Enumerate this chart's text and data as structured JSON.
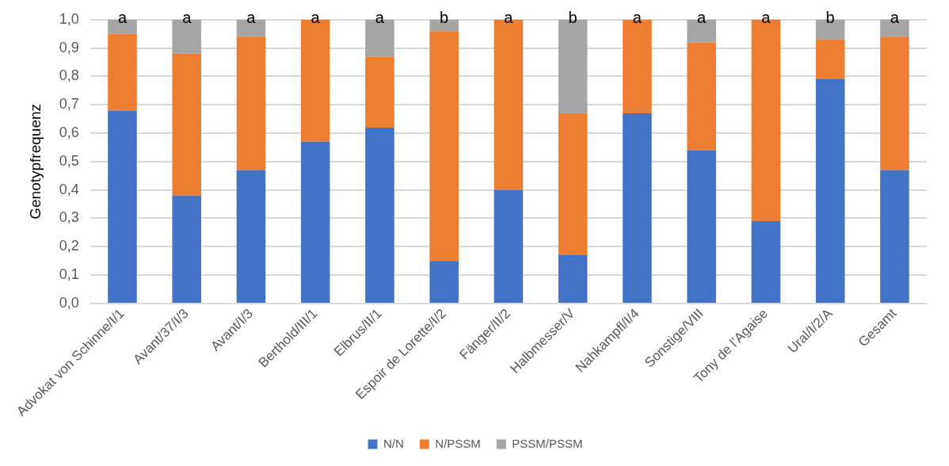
{
  "chart_data": {
    "type": "bar",
    "stacked": true,
    "ylabel": "Genotypfrequenz",
    "categories": [
      "Advokat von Schinne/I/1",
      "Avant/37/I/3",
      "Avant/I/3",
      "Berthold/III/1",
      "Elbrus/II/1",
      "Espoir de Lorette/I/2",
      "Fänger/II/2",
      "Halbmesser/V",
      "Nahkampfl/I/4",
      "Sonstige/VIII",
      "Tony de l’Agaise",
      "Ural/I/2/A",
      "Gesamt"
    ],
    "series": [
      {
        "name": "N/N",
        "color": "#4472c4",
        "values": [
          0.68,
          0.38,
          0.47,
          0.57,
          0.62,
          0.15,
          0.4,
          0.17,
          0.67,
          0.54,
          0.29,
          0.79,
          0.47
        ]
      },
      {
        "name": "N/PSSM",
        "color": "#ed7d31",
        "values": [
          0.27,
          0.5,
          0.47,
          0.43,
          0.25,
          0.81,
          0.6,
          0.5,
          0.33,
          0.38,
          0.71,
          0.14,
          0.47
        ]
      },
      {
        "name": "PSSM/PSSM",
        "color": "#a5a5a5",
        "values": [
          0.05,
          0.12,
          0.06,
          0,
          0.13,
          0.04,
          0,
          0.33,
          0,
          0.08,
          0,
          0.07,
          0.06
        ]
      }
    ],
    "ylim": [
      0,
      1
    ],
    "yticks": [
      {
        "value": 0,
        "label": "0,0"
      },
      {
        "value": 0.1,
        "label": "0,1"
      },
      {
        "value": 0.2,
        "label": "0,2"
      },
      {
        "value": 0.3,
        "label": "0,3"
      },
      {
        "value": 0.4,
        "label": "0,4"
      },
      {
        "value": 0.5,
        "label": "0,5"
      },
      {
        "value": 0.6,
        "label": "0,6"
      },
      {
        "value": 0.7,
        "label": "0,7"
      },
      {
        "value": 0.8,
        "label": "0,8"
      },
      {
        "value": 0.9,
        "label": "0,9"
      },
      {
        "value": 1,
        "label": "1,0"
      }
    ],
    "grid": "y",
    "legend": "bottom",
    "annotations": [
      {
        "text": "a",
        "x": "Advokat von Schinne/I/1",
        "y": 1
      },
      {
        "text": "a",
        "x": "Avant/37/I/3",
        "y": 1
      },
      {
        "text": "a",
        "x": "Avant/I/3",
        "y": 1
      },
      {
        "text": "a",
        "x": "Berthold/III/1",
        "y": 1
      },
      {
        "text": "a",
        "x": "Elbrus/II/1",
        "y": 1
      },
      {
        "text": "b",
        "x": "Espoir de Lorette/I/2",
        "y": 1
      },
      {
        "text": "a",
        "x": "Fänger/II/2",
        "y": 1
      },
      {
        "text": "b",
        "x": "Halbmesser/V",
        "y": 1
      },
      {
        "text": "a",
        "x": "Nahkampfl/I/4",
        "y": 1
      },
      {
        "text": "a",
        "x": "Sonstige/VIII",
        "y": 1
      },
      {
        "text": "a",
        "x": "Tony de l’Agaise",
        "y": 1
      },
      {
        "text": "b",
        "x": "Ural/I/2/A",
        "y": 1
      },
      {
        "text": "a",
        "x": "Gesamt",
        "y": 1
      }
    ]
  }
}
